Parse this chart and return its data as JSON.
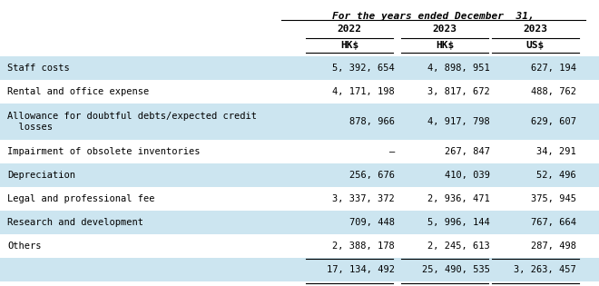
{
  "title": "For the years ended December  31,",
  "col_headers_row1": [
    "2022",
    "2023",
    "2023"
  ],
  "col_headers_row2": [
    "HK$",
    "HK$",
    "US$"
  ],
  "rows": [
    [
      "Staff costs",
      "5, 392, 654",
      "4, 898, 951",
      "627, 194"
    ],
    [
      "Rental and office expense",
      "4, 171, 198",
      "3, 817, 672",
      "488, 762"
    ],
    [
      "Allowance for doubtful debts/expected credit\n  losses",
      "878, 966",
      "4, 917, 798",
      "629, 607"
    ],
    [
      "Impairment of obsolete inventories",
      "—",
      "267, 847",
      "34, 291"
    ],
    [
      "Depreciation",
      "256, 676",
      "410, 039",
      "52, 496"
    ],
    [
      "Legal and professional fee",
      "3, 337, 372",
      "2, 936, 471",
      "375, 945"
    ],
    [
      "Research and development",
      "709, 448",
      "5, 996, 144",
      "767, 664"
    ],
    [
      "Others",
      "2, 388, 178",
      "2, 245, 613",
      "287, 498"
    ]
  ],
  "total_values": [
    "17, 134, 492",
    "25, 490, 535",
    "3, 263, 457"
  ],
  "bg_light": "#cce5f0",
  "bg_white": "#ffffff",
  "font_size": 7.5,
  "title_font_size": 8.0,
  "header_font_size": 8.0
}
